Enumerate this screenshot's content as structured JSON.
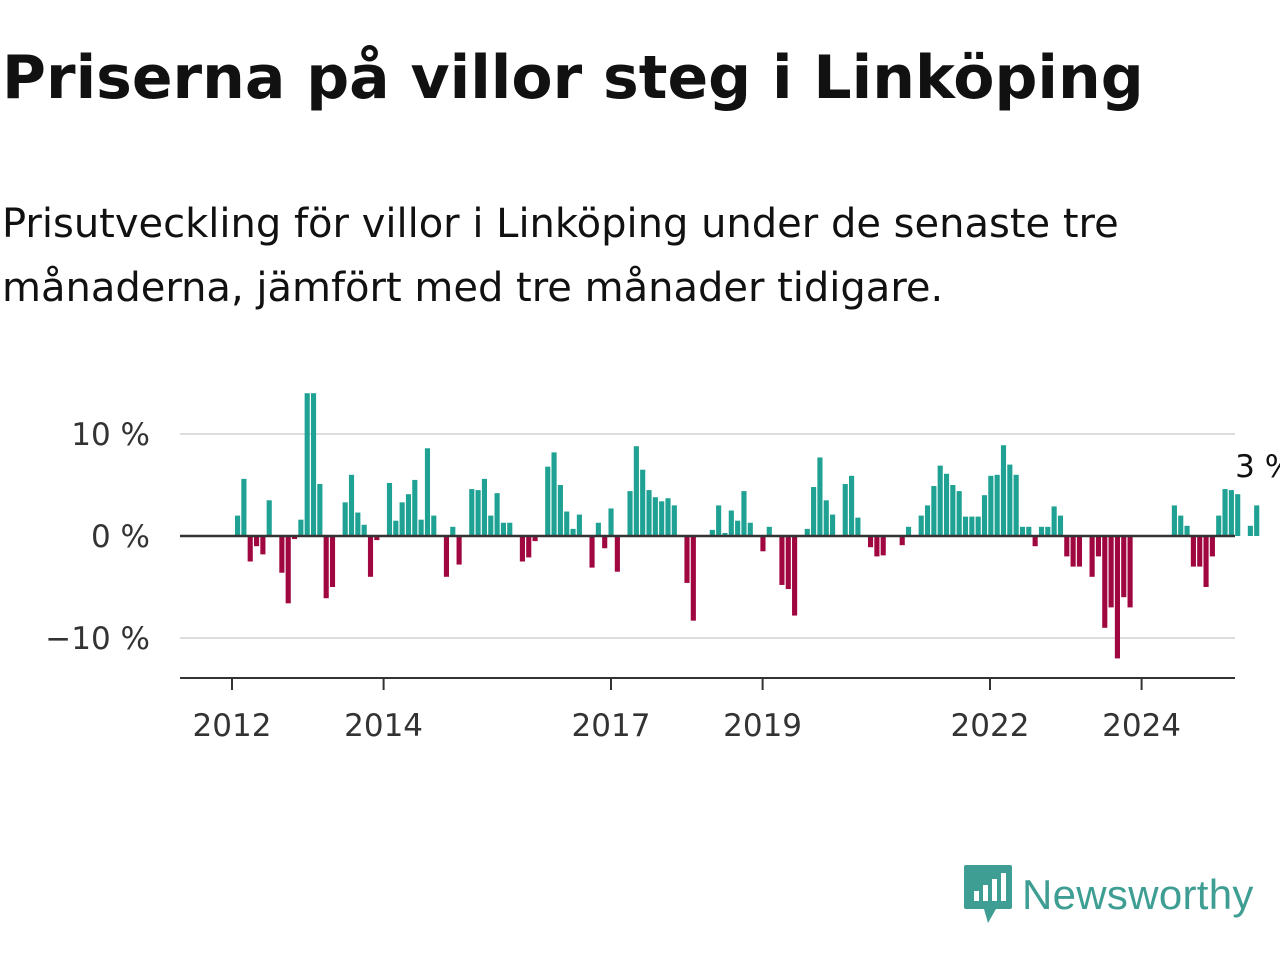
{
  "title": "Priserna på villor steg i Linköping",
  "subtitle": "Prisutveckling för villor i Linköping under de senaste tre månaderna, jämfört med tre månader tidigare.",
  "brand": {
    "name": "Newsworthy",
    "icon": "newsworthy-logo-icon"
  },
  "colors": {
    "positive": "#1fa293",
    "negative": "#a0063f",
    "grid": "#dddddd",
    "axis": "#333333",
    "brand": "#3f9e93"
  },
  "chart_data": {
    "type": "bar",
    "title": "Priserna på villor steg i Linköping",
    "xlabel": "",
    "ylabel": "",
    "unit": "%",
    "ylim": [
      -14,
      14
    ],
    "grid": true,
    "y_ticks": [
      {
        "value": 10,
        "label": "10 %"
      },
      {
        "value": 0,
        "label": "0 %"
      },
      {
        "value": -10,
        "label": "−10 %"
      }
    ],
    "x_ticks": [
      {
        "year": 2012,
        "label": "2012"
      },
      {
        "year": 2014,
        "label": "2014"
      },
      {
        "year": 2017,
        "label": "2017"
      },
      {
        "year": 2019,
        "label": "2019"
      },
      {
        "year": 2022,
        "label": "2022"
      },
      {
        "year": 2024,
        "label": "2024"
      }
    ],
    "start_year": 2011.75,
    "end_year": 2024.6,
    "series": [
      {
        "values": [
          2,
          5.6,
          -2.5,
          -1,
          -1.8,
          3.5,
          0,
          -3.6,
          -6.6,
          -0.3,
          1.6,
          14,
          14,
          5.1,
          -6.1,
          -5,
          0,
          3.3,
          6,
          2.3,
          1.1,
          -4,
          -0.4,
          0,
          5.2,
          1.5,
          3.3,
          4.1,
          5.5,
          1.6,
          8.6,
          2,
          0,
          -4,
          0.9,
          -2.8,
          0,
          4.6,
          4.5,
          5.6,
          2,
          4.2,
          1.3,
          1.3,
          0,
          -2.5,
          -2.1,
          -0.5,
          0,
          6.8,
          8.2,
          5,
          2.4,
          0.7,
          2.1,
          0,
          -3.1,
          1.3,
          -1.2,
          2.7,
          -3.5,
          0,
          4.4,
          8.8,
          6.5,
          4.5,
          3.8,
          3.4,
          3.7,
          3,
          0,
          -4.6,
          -8.3,
          0,
          0,
          0.6,
          3,
          0.3,
          2.5,
          1.5,
          4.4,
          1.3,
          0,
          -1.5,
          0.9,
          0,
          -4.8,
          -5.2,
          -7.8,
          0,
          0.7,
          4.8,
          7.7,
          3.5,
          2.1,
          0,
          5.1,
          5.9,
          1.8,
          0,
          -1.1,
          -2,
          -1.9,
          0,
          0,
          -0.9,
          0.9,
          0,
          2,
          3,
          4.9,
          6.9,
          6.1,
          5,
          4.4,
          1.9,
          1.9,
          1.9,
          4,
          5.9,
          6,
          8.9,
          7,
          6,
          0.9,
          0.9,
          -1,
          0.9,
          0.9,
          2.9,
          2,
          -2,
          -3,
          -3,
          0,
          -4,
          -2,
          -9,
          -7,
          -12,
          -6,
          -7,
          0,
          0,
          0,
          0,
          0,
          0,
          3,
          2,
          1,
          -3,
          -3,
          -5,
          -2,
          2,
          4.6,
          4.5,
          4.1,
          0,
          1,
          3
        ]
      }
    ],
    "last_value_label": "3 %"
  }
}
